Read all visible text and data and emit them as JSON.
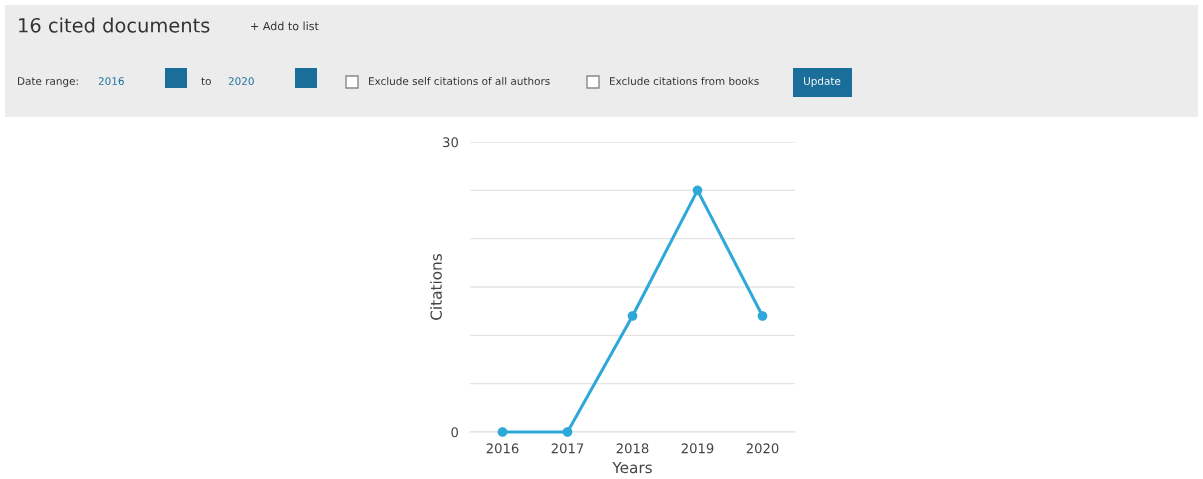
{
  "chart_data": {
    "type": "line",
    "title": "16 cited documents",
    "annotations": [
      "+ Add to list",
      "Date range:",
      "2016",
      "to",
      "2020",
      "Exclude self citations of all authors",
      "Exclude citations from books",
      "Update"
    ],
    "xlabel": "Years",
    "ylabel": "Citations",
    "categories": [
      "2016",
      "2017",
      "2018",
      "2019",
      "2020"
    ],
    "series": [
      {
        "color": "#2ea8d8",
        "values": [
          0,
          0,
          12,
          25,
          12
        ]
      }
    ],
    "ylim": [
      0,
      30
    ],
    "yticks": [
      0,
      {
        "value": 5,
        "label": null
      },
      {
        "value": 10,
        "label": null
      },
      {
        "value": 15,
        "label": null
      },
      {
        "value": 20,
        "label": null
      },
      {
        "value": 25,
        "label": null
      },
      30
    ],
    "grid": "y",
    "marker": "circle",
    "line_style": "solid"
  }
}
